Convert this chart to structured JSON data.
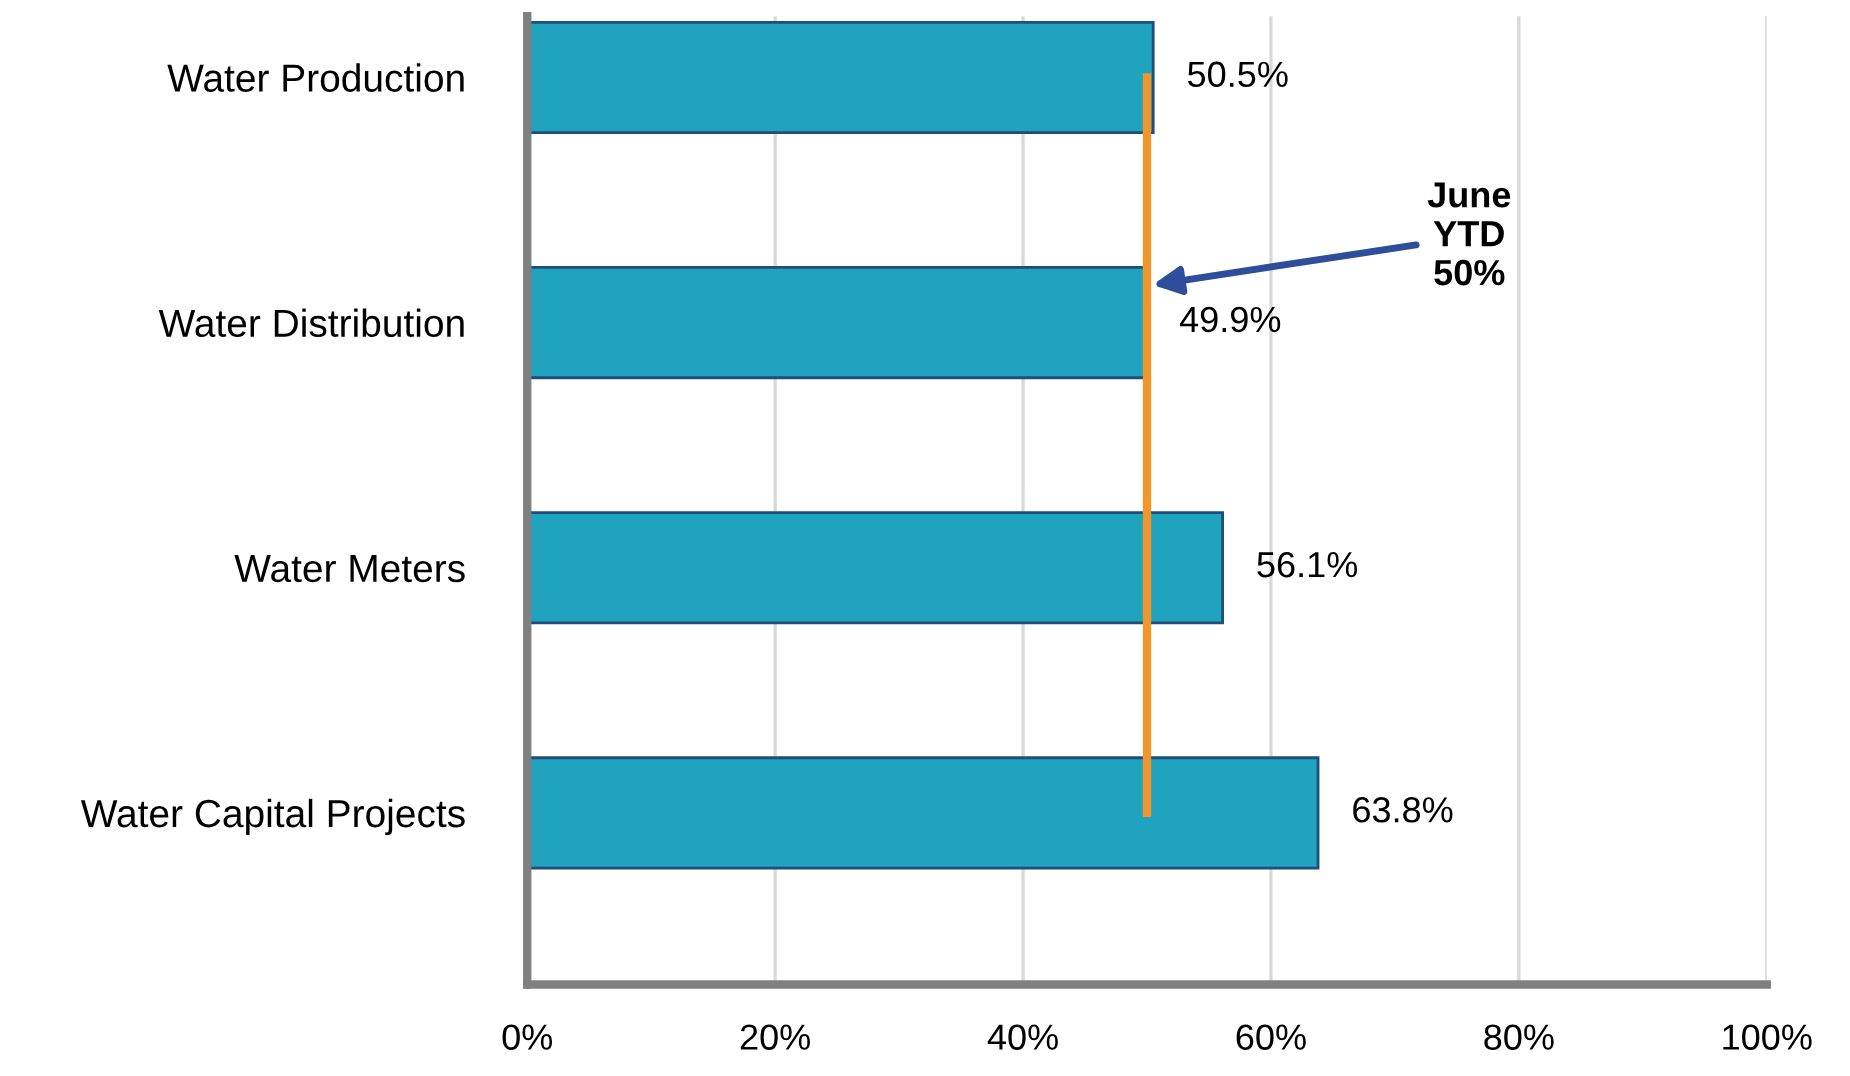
{
  "chart_data": {
    "type": "bar",
    "orientation": "horizontal",
    "categories": [
      "Water Production",
      "Water Distribution",
      "Water Meters",
      "Water Capital Projects"
    ],
    "values": [
      50.5,
      49.9,
      56.1,
      63.8
    ],
    "value_labels": [
      "50.5%",
      "49.9%",
      "56.1%",
      "63.8%"
    ],
    "color": "#1fa3bf",
    "xlim": [
      0,
      100
    ],
    "xticks": [
      {
        "value": 0,
        "label": "0%"
      },
      {
        "value": 20,
        "label": "20%"
      },
      {
        "value": 40,
        "label": "40%"
      },
      {
        "value": 60,
        "label": "60%"
      },
      {
        "value": 80,
        "label": "80%"
      },
      {
        "value": 100,
        "label": "100%"
      }
    ],
    "grid": "x",
    "ref_lines": [
      {
        "axis": "x",
        "value": 50,
        "label": "June\nYTD\n50%",
        "color": "#f0962a"
      }
    ]
  }
}
